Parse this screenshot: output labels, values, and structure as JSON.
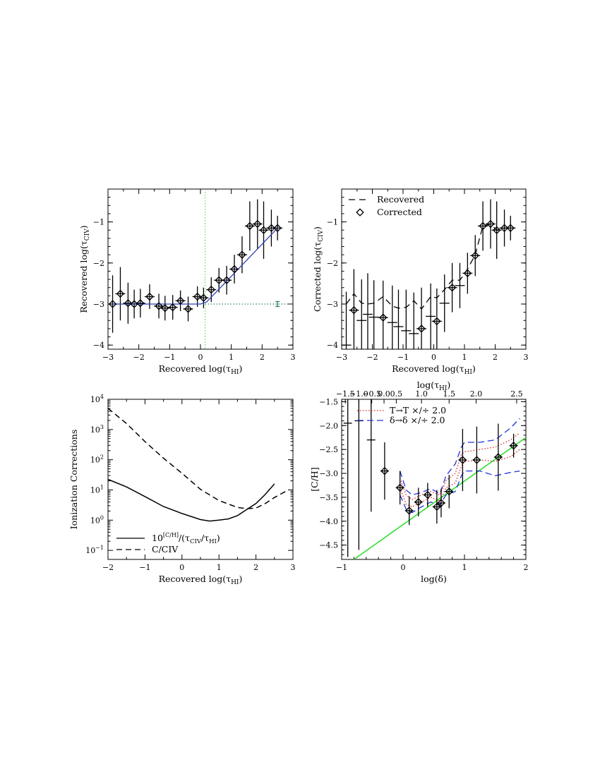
{
  "chart_data": [
    {
      "type": "scatter",
      "panel": "top-left",
      "xlabel": "Recovered log(τHI)",
      "ylabel": "Recovered log(τCIV)",
      "xlim": [
        -3,
        3
      ],
      "ylim": [
        -4.1,
        -0.2
      ],
      "xticks": [
        "-3",
        "-2",
        "-1",
        "0",
        "1",
        "2",
        "3"
      ],
      "yticks": [
        "-4",
        "-3",
        "-2",
        "-1"
      ],
      "x": [
        -2.85,
        -2.6,
        -2.35,
        -2.15,
        -1.95,
        -1.65,
        -1.35,
        -1.15,
        -0.9,
        -0.65,
        -0.4,
        -0.1,
        0.1,
        0.35,
        0.6,
        0.85,
        1.1,
        1.35,
        1.6,
        1.85,
        2.05,
        2.3,
        2.5
      ],
      "y": [
        -3.0,
        -2.75,
        -2.98,
        -3.0,
        -2.98,
        -2.82,
        -3.05,
        -3.1,
        -3.08,
        -2.92,
        -3.12,
        -2.82,
        -2.85,
        -2.65,
        -2.42,
        -2.42,
        -2.15,
        -1.8,
        -1.1,
        -1.05,
        -1.2,
        -1.15,
        -1.15
      ],
      "yerr": [
        0.7,
        0.65,
        0.5,
        0.35,
        0.35,
        0.3,
        0.3,
        0.3,
        0.3,
        0.25,
        0.3,
        0.25,
        0.25,
        0.3,
        0.3,
        0.35,
        0.35,
        0.45,
        0.6,
        0.6,
        0.7,
        0.45,
        0.3
      ],
      "fit": {
        "name": "fit",
        "color": "#2f3fb5",
        "x": [
          -2.85,
          0.0,
          0.2,
          2.5
        ],
        "y": [
          -3.0,
          -3.0,
          -2.95,
          -1.15
        ]
      },
      "reference_lines": [
        {
          "orientation": "vertical",
          "value": 0.15,
          "color": "#66cc66"
        },
        {
          "orientation": "horizontal",
          "value": -3.0,
          "color": "#2f7f6f"
        }
      ],
      "floor_point": {
        "x": 2.5,
        "y": -3.0,
        "yerr": 0.06,
        "color": "#2f7f6f"
      }
    },
    {
      "type": "scatter",
      "panel": "top-right",
      "xlabel": "Recovered log(τHI)",
      "ylabel": "Corrected log(τCIV)",
      "xlim": [
        -3,
        3
      ],
      "ylim": [
        -4.1,
        -0.2
      ],
      "xticks": [
        "-3",
        "-2",
        "-1",
        "0",
        "1",
        "2",
        "3"
      ],
      "yticks": [
        "-4",
        "-3",
        "-2",
        "-1"
      ],
      "legend": [
        "Recovered",
        "Corrected"
      ],
      "recovered_curve": {
        "x": [
          -2.85,
          -2.6,
          -2.35,
          -2.15,
          -1.95,
          -1.65,
          -1.35,
          -1.15,
          -0.9,
          -0.65,
          -0.4,
          -0.1,
          0.1,
          0.35,
          0.6,
          0.85,
          1.1,
          1.35,
          1.6,
          1.85,
          2.05,
          2.3,
          2.5
        ],
        "y": [
          -3.0,
          -2.75,
          -2.98,
          -3.0,
          -2.98,
          -2.82,
          -3.05,
          -3.1,
          -3.08,
          -2.92,
          -3.12,
          -2.82,
          -2.85,
          -2.65,
          -2.42,
          -2.42,
          -2.15,
          -1.8,
          -1.1,
          -1.05,
          -1.2,
          -1.15,
          -1.15
        ]
      },
      "x": [
        -2.85,
        -2.6,
        -2.35,
        -2.15,
        -1.95,
        -1.65,
        -1.35,
        -1.15,
        -0.9,
        -0.65,
        -0.4,
        -0.1,
        0.1,
        0.35,
        0.6,
        0.85,
        1.1,
        1.35,
        1.6,
        1.85,
        2.05,
        2.3,
        2.5
      ],
      "y": [
        -4.0,
        -3.15,
        -3.4,
        -3.25,
        -3.32,
        -3.33,
        -3.45,
        -3.55,
        -3.65,
        -3.72,
        -3.6,
        -3.3,
        -3.42,
        -2.98,
        -2.6,
        -2.55,
        -2.25,
        -1.82,
        -1.1,
        -1.05,
        -1.2,
        -1.15,
        -1.15
      ],
      "yerr": [
        1.3,
        1.0,
        1.0,
        1.0,
        0.9,
        0.9,
        0.9,
        0.9,
        1.0,
        1.0,
        1.0,
        0.8,
        0.8,
        0.7,
        0.6,
        0.55,
        0.5,
        0.5,
        0.6,
        0.6,
        0.7,
        0.45,
        0.3
      ],
      "diamond_indices": [
        1,
        5,
        10,
        12,
        14,
        16,
        17,
        18,
        19,
        20,
        21,
        22
      ]
    },
    {
      "type": "line",
      "panel": "bottom-left",
      "xlabel": "Recovered log(τHI)",
      "ylabel": "Ionization Corrections",
      "yscale": "log",
      "xlim": [
        -2,
        3
      ],
      "ylim_log10": [
        -1.3,
        4.0
      ],
      "xticks": [
        "-2",
        "-1",
        "0",
        "1",
        "2",
        "3"
      ],
      "yticks": [
        "10^-1",
        "10^0",
        "10^1",
        "10^2",
        "10^3",
        "10^4"
      ],
      "series": [
        {
          "name": "10^[C/H]/(τCIV/τHI)",
          "style": "solid",
          "x": [
            -2.0,
            -1.5,
            -1.0,
            -0.5,
            0.0,
            0.5,
            0.75,
            1.0,
            1.25,
            1.5,
            1.75,
            2.0,
            2.25,
            2.5
          ],
          "log10_y": [
            1.35,
            1.1,
            0.78,
            0.45,
            0.22,
            0.02,
            -0.03,
            0.0,
            0.04,
            0.15,
            0.35,
            0.55,
            0.85,
            1.2
          ]
        },
        {
          "name": "C/CIV",
          "style": "dashed",
          "x": [
            -2.0,
            -1.5,
            -1.0,
            -0.5,
            0.0,
            0.5,
            1.0,
            1.5,
            1.75,
            2.0,
            2.25,
            2.5,
            2.8
          ],
          "log10_y": [
            3.7,
            3.2,
            2.6,
            2.05,
            1.55,
            1.02,
            0.65,
            0.42,
            0.38,
            0.4,
            0.55,
            0.75,
            0.95
          ]
        }
      ],
      "legend": [
        "10^[C/H]/(τCIV/τHI)",
        "C/CIV"
      ]
    },
    {
      "type": "scatter",
      "panel": "bottom-right",
      "xlabel": "log(δ)",
      "ylabel": "[C/H]",
      "top_xlabel": "log(τHI)",
      "xlim": [
        -1,
        2
      ],
      "ylim": [
        -4.8,
        -1.45
      ],
      "xticks": [
        "-1",
        "0",
        "1",
        "2"
      ],
      "yticks": [
        "-4.5",
        "-4.0",
        "-3.5",
        "-3.0",
        "-2.5",
        "-2.0",
        "-1.5"
      ],
      "top_ticks": [
        {
          "label": "-1.5",
          "at_logdelta": -0.94
        },
        {
          "label": "-1.0",
          "at_logdelta": -0.72
        },
        {
          "label": "-0.5",
          "at_logdelta": -0.51
        },
        {
          "label": "0.0",
          "at_logdelta": -0.31
        },
        {
          "label": "0.5",
          "at_logdelta": -0.11
        },
        {
          "label": "1.0",
          "at_logdelta": 0.3
        },
        {
          "label": "1.5",
          "at_logdelta": 0.75
        },
        {
          "label": "2.0",
          "at_logdelta": 1.19
        },
        {
          "label": "2.5",
          "at_logdelta": 1.85
        }
      ],
      "legend": [
        "T→T ×/÷ 2.0",
        "δ→δ ×/÷ 2.0"
      ],
      "x": [
        -0.9,
        -0.72,
        -0.52,
        -0.3,
        -0.05,
        0.1,
        0.25,
        0.4,
        0.55,
        0.62,
        0.75,
        0.97,
        1.2,
        1.55,
        1.8
      ],
      "y": [
        -1.95,
        -1.9,
        -2.3,
        -2.95,
        -3.3,
        -3.78,
        -3.6,
        -3.45,
        -3.7,
        -3.62,
        -3.38,
        -2.72,
        -2.72,
        -2.66,
        -2.42
      ],
      "yerr": [
        2.8,
        2.7,
        1.5,
        0.6,
        0.35,
        0.3,
        0.3,
        0.25,
        0.35,
        0.3,
        0.35,
        0.65,
        0.7,
        0.7,
        0.25
      ],
      "diamond_indices": [
        3,
        4,
        5,
        6,
        7,
        8,
        9,
        10,
        11,
        12,
        13,
        14
      ],
      "fit_line": {
        "name": "fit",
        "color": "#33dd33",
        "x": [
          -0.8,
          2.0
        ],
        "y": [
          -4.8,
          -2.25
        ]
      },
      "bands": [
        {
          "name": "T→T ×/÷ 2.0",
          "color": "#dd2222",
          "style": "dotted",
          "x": [
            -0.05,
            0.05,
            0.15,
            0.3,
            0.45,
            0.6,
            0.7,
            0.85,
            0.95,
            1.0,
            1.25,
            1.5,
            1.75,
            1.9
          ],
          "upper": [
            -3.1,
            -3.45,
            -3.55,
            -3.45,
            -3.38,
            -3.45,
            -3.15,
            -3.0,
            -2.6,
            -2.55,
            -2.5,
            -2.45,
            -2.3,
            -2.15
          ],
          "lower": [
            -3.3,
            -3.65,
            -3.7,
            -3.6,
            -3.5,
            -3.58,
            -3.3,
            -3.2,
            -2.85,
            -2.75,
            -2.72,
            -2.75,
            -2.65,
            -2.5
          ]
        },
        {
          "name": "δ→δ ×/÷ 2.0",
          "color": "#2233dd",
          "style": "dashed",
          "x": [
            -0.05,
            0.05,
            0.15,
            0.3,
            0.45,
            0.6,
            0.7,
            0.85,
            0.95,
            1.0,
            1.25,
            1.5,
            1.75,
            1.9
          ],
          "upper": [
            -2.95,
            -3.35,
            -3.45,
            -3.4,
            -3.32,
            -3.42,
            -3.05,
            -2.8,
            -2.45,
            -2.35,
            -2.35,
            -2.3,
            -2.05,
            -1.85
          ],
          "lower": [
            -3.45,
            -3.75,
            -3.82,
            -3.7,
            -3.6,
            -3.65,
            -3.45,
            -3.38,
            -3.05,
            -2.95,
            -2.95,
            -3.05,
            -2.98,
            -2.95
          ]
        }
      ]
    }
  ]
}
